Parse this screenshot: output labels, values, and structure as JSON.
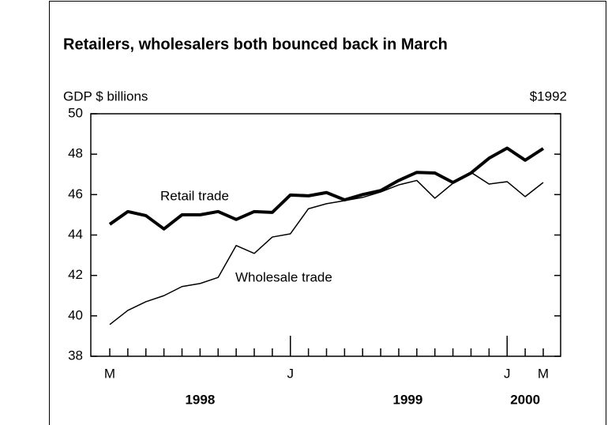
{
  "chart_data": {
    "type": "line",
    "title": "Retailers, wholesalers both bounced back in March",
    "y_label": "GDP $ billions",
    "y_label_right": "$1992",
    "annotations": [
      "Retail trade",
      "Wholesale trade"
    ],
    "categories": [
      "M",
      null,
      null,
      null,
      null,
      null,
      null,
      null,
      null,
      null,
      "J",
      null,
      null,
      null,
      null,
      null,
      null,
      null,
      null,
      null,
      null,
      null,
      "J",
      null,
      "M"
    ],
    "year_labels": [
      "1998",
      "1999",
      "2000"
    ],
    "series": [
      {
        "name": "Retail trade",
        "color": "#000000",
        "values": [
          44.53,
          45.16,
          44.96,
          44.3,
          45.0,
          45.0,
          45.16,
          44.77,
          45.16,
          45.12,
          45.98,
          45.94,
          46.1,
          45.74,
          46.0,
          46.2,
          46.7,
          47.1,
          47.07,
          46.6,
          47.07,
          47.8,
          48.3,
          47.7,
          48.28
        ]
      },
      {
        "name": "Wholesale trade",
        "color": "#000000",
        "values": [
          39.57,
          40.27,
          40.7,
          41.0,
          41.45,
          41.6,
          41.9,
          43.48,
          43.09,
          43.9,
          44.06,
          45.3,
          45.55,
          45.7,
          45.86,
          46.13,
          46.48,
          46.7,
          45.82,
          46.56,
          47.1,
          46.52,
          46.64,
          45.9,
          46.6
        ]
      }
    ],
    "ylim": [
      38,
      50
    ],
    "yticks": [
      38,
      40,
      42,
      44,
      46,
      48,
      50
    ]
  }
}
